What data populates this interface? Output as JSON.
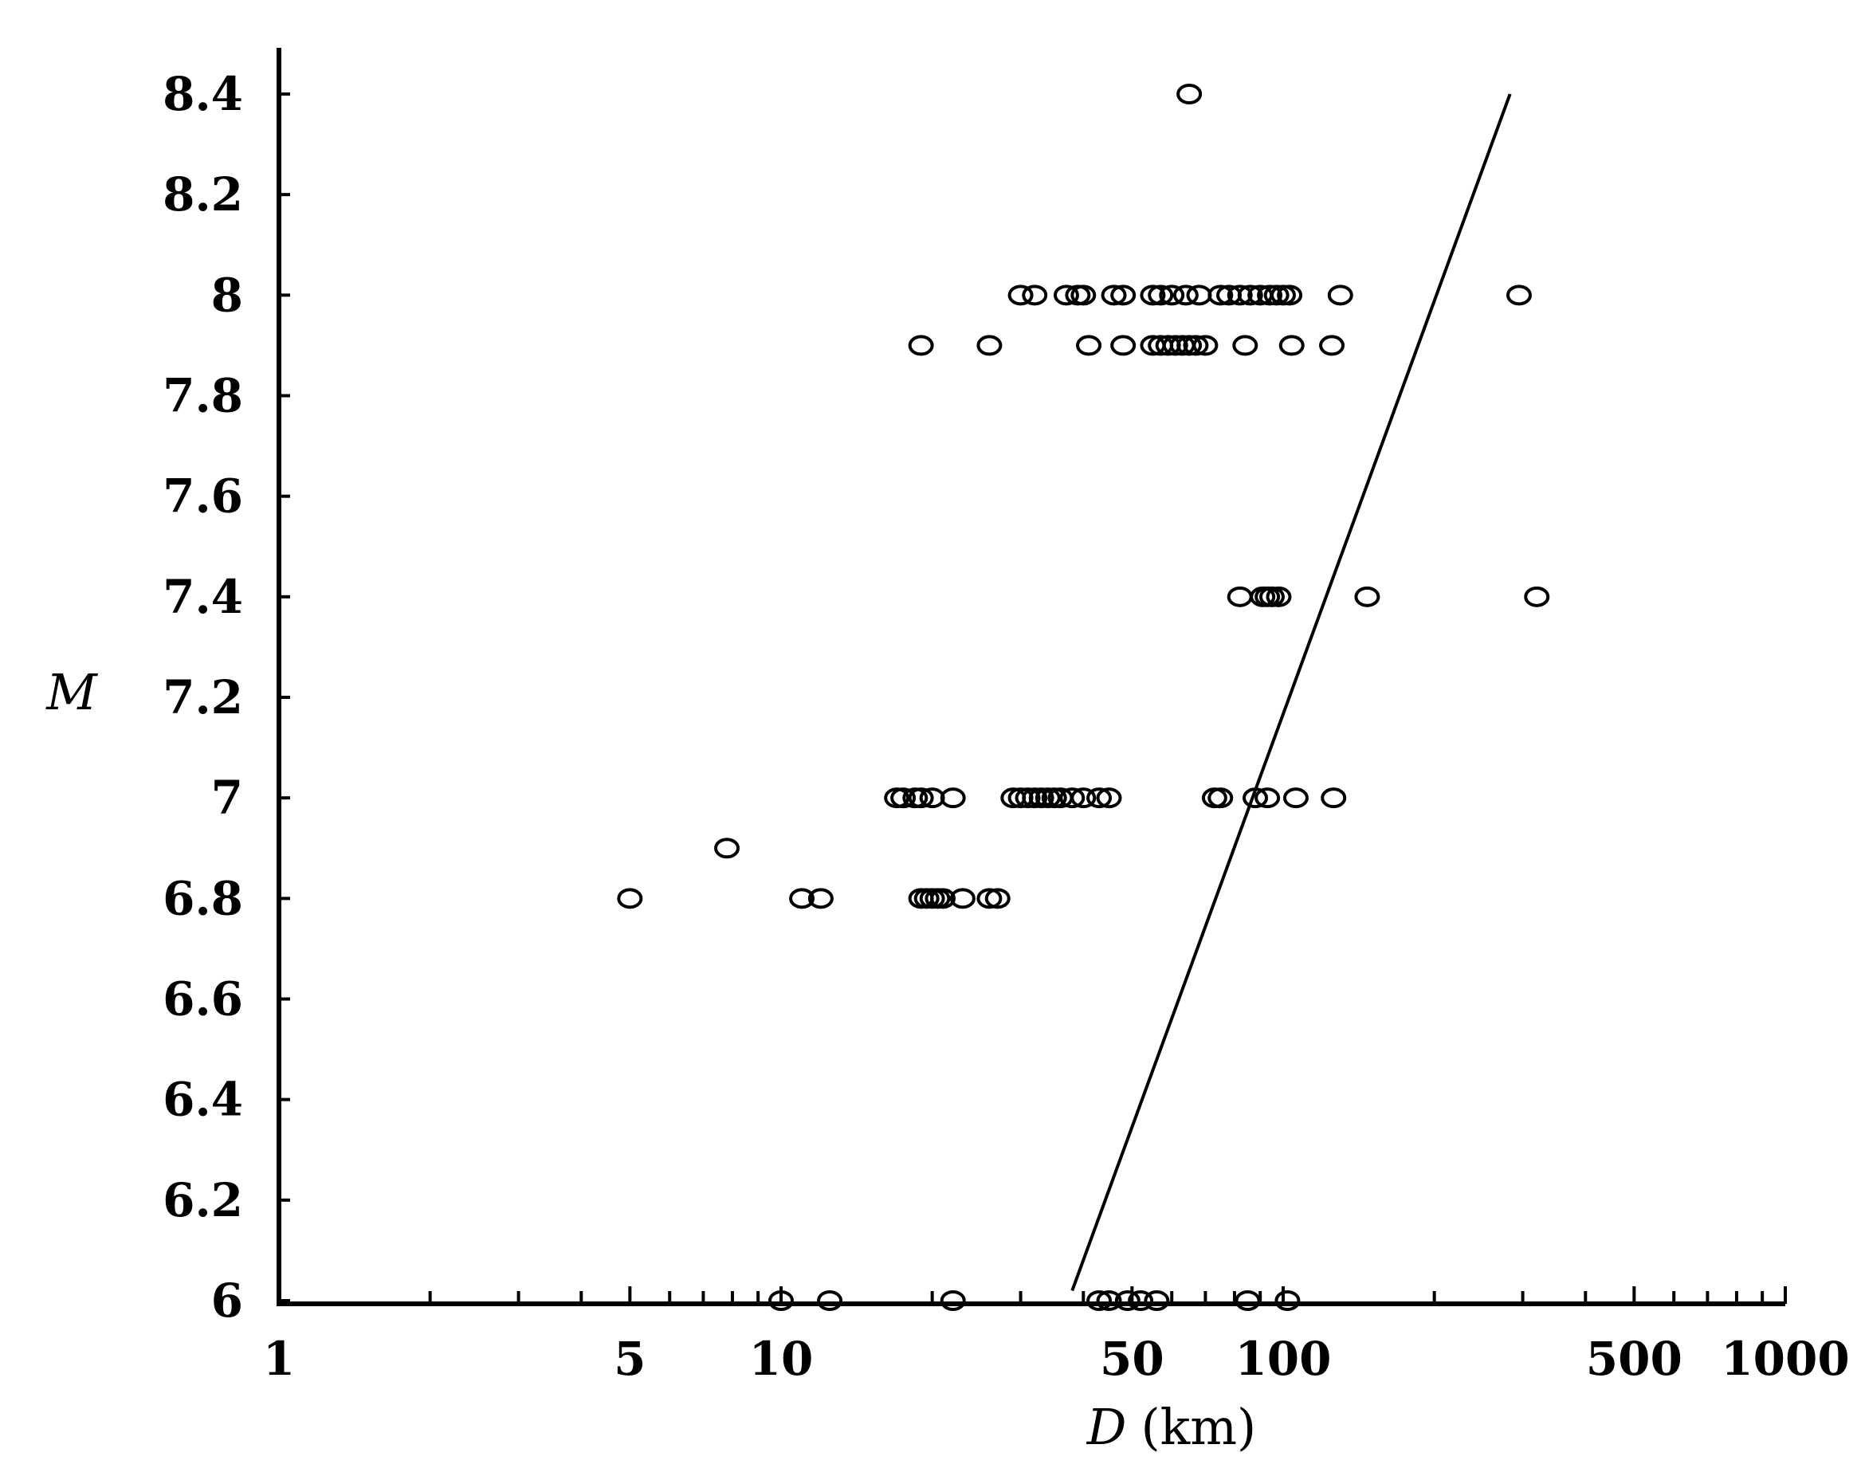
{
  "chart_data": {
    "type": "scatter",
    "title": "",
    "x_scale": "log",
    "xlim": [
      1,
      1000
    ],
    "ylim": [
      6,
      8.5
    ],
    "xlabel": {
      "var": "D",
      "unit": "(km)"
    },
    "ylabel": "M",
    "x_ticks": [
      {
        "value": 1,
        "label": "1"
      },
      {
        "value": 5,
        "label": "5"
      },
      {
        "value": 10,
        "label": "10"
      },
      {
        "value": 50,
        "label": "50"
      },
      {
        "value": 100,
        "label": "100"
      },
      {
        "value": 500,
        "label": "500"
      },
      {
        "value": 1000,
        "label": "1000"
      }
    ],
    "x_minor_ticks": [
      2,
      3,
      4,
      6,
      7,
      8,
      9,
      20,
      30,
      40,
      60,
      70,
      80,
      90,
      200,
      300,
      400,
      600,
      700,
      800,
      900
    ],
    "y_ticks": [
      {
        "value": 6,
        "label": "6"
      },
      {
        "value": 6.2,
        "label": "6.2"
      },
      {
        "value": 6.4,
        "label": "6.4"
      },
      {
        "value": 6.6,
        "label": "6.6"
      },
      {
        "value": 6.8,
        "label": "6.8"
      },
      {
        "value": 7,
        "label": "7"
      },
      {
        "value": 7.2,
        "label": "7.2"
      },
      {
        "value": 7.4,
        "label": "7.4"
      },
      {
        "value": 7.6,
        "label": "7.6"
      },
      {
        "value": 7.8,
        "label": "7.8"
      },
      {
        "value": 8,
        "label": "8"
      },
      {
        "value": 8.2,
        "label": "8.2"
      },
      {
        "value": 8.4,
        "label": "8.4"
      }
    ],
    "grid": false,
    "series": [
      {
        "marker": "open-circle",
        "points": [
          [
            65,
            8.4
          ],
          [
            30,
            8
          ],
          [
            32,
            8
          ],
          [
            37,
            8
          ],
          [
            39,
            8
          ],
          [
            40,
            8
          ],
          [
            46,
            8
          ],
          [
            48,
            8
          ],
          [
            55,
            8
          ],
          [
            57,
            8
          ],
          [
            60,
            8
          ],
          [
            64,
            8
          ],
          [
            68,
            8
          ],
          [
            75,
            8
          ],
          [
            78,
            8
          ],
          [
            82,
            8
          ],
          [
            86,
            8
          ],
          [
            90,
            8
          ],
          [
            94,
            8
          ],
          [
            97,
            8
          ],
          [
            100,
            8
          ],
          [
            103,
            8
          ],
          [
            130,
            8
          ],
          [
            295,
            8
          ],
          [
            19,
            7.9
          ],
          [
            26,
            7.9
          ],
          [
            41,
            7.9
          ],
          [
            48,
            7.9
          ],
          [
            55,
            7.9
          ],
          [
            57,
            7.9
          ],
          [
            59,
            7.9
          ],
          [
            61,
            7.9
          ],
          [
            63,
            7.9
          ],
          [
            65,
            7.9
          ],
          [
            67,
            7.9
          ],
          [
            70,
            7.9
          ],
          [
            84,
            7.9
          ],
          [
            104,
            7.9
          ],
          [
            125,
            7.9
          ],
          [
            82,
            7.4
          ],
          [
            91,
            7.4
          ],
          [
            93,
            7.4
          ],
          [
            95,
            7.4
          ],
          [
            98,
            7.4
          ],
          [
            147,
            7.4
          ],
          [
            320,
            7.4
          ],
          [
            17,
            7
          ],
          [
            17.5,
            7
          ],
          [
            18.5,
            7
          ],
          [
            19,
            7
          ],
          [
            20,
            7
          ],
          [
            22,
            7
          ],
          [
            29,
            7
          ],
          [
            30,
            7
          ],
          [
            31,
            7
          ],
          [
            32,
            7
          ],
          [
            33,
            7
          ],
          [
            34,
            7
          ],
          [
            35,
            7
          ],
          [
            36,
            7
          ],
          [
            38,
            7
          ],
          [
            40,
            7
          ],
          [
            43,
            7
          ],
          [
            45,
            7
          ],
          [
            73,
            7
          ],
          [
            75,
            7
          ],
          [
            88,
            7
          ],
          [
            93,
            7
          ],
          [
            106,
            7
          ],
          [
            126,
            7
          ],
          [
            7.8,
            6.9
          ],
          [
            5,
            6.8
          ],
          [
            11,
            6.8
          ],
          [
            12,
            6.8
          ],
          [
            19,
            6.8
          ],
          [
            19.5,
            6.8
          ],
          [
            20,
            6.8
          ],
          [
            20.5,
            6.8
          ],
          [
            21,
            6.8
          ],
          [
            23,
            6.8
          ],
          [
            26,
            6.8
          ],
          [
            27,
            6.8
          ],
          [
            10,
            6
          ],
          [
            12.5,
            6
          ],
          [
            22,
            6
          ],
          [
            43,
            6
          ],
          [
            45,
            6
          ],
          [
            49,
            6
          ],
          [
            52,
            6
          ],
          [
            56,
            6
          ],
          [
            85,
            6
          ],
          [
            102,
            6
          ]
        ]
      }
    ],
    "lines": [
      {
        "style": "solid",
        "from": [
          38,
          6.02
        ],
        "to": [
          283,
          8.4
        ]
      }
    ]
  }
}
